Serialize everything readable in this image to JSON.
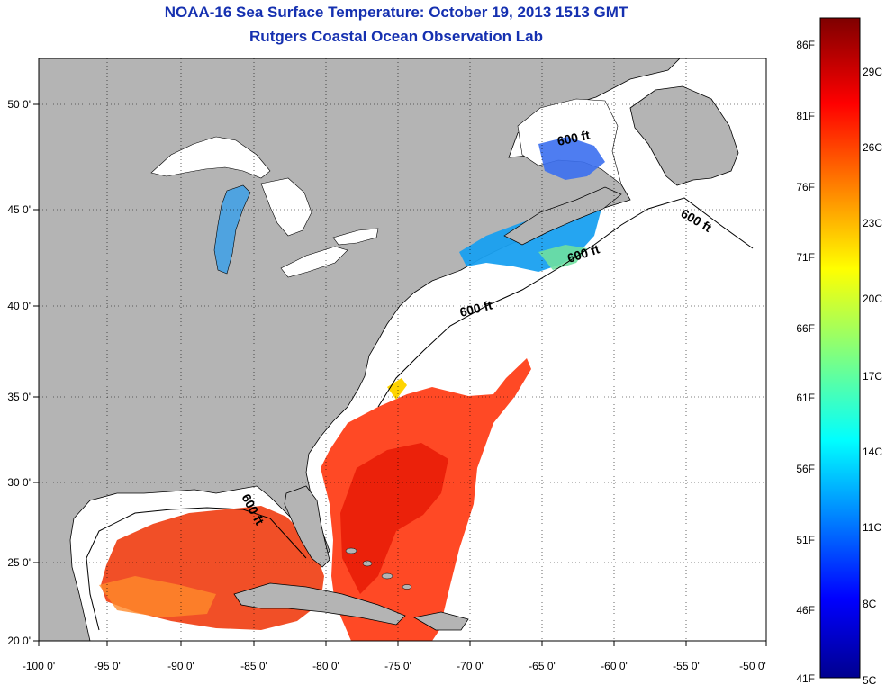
{
  "title": {
    "line1": "NOAA-16 Sea Surface Temperature:  October 19, 2013 1513 GMT",
    "line2": "Rutgers Coastal Ocean Observation Lab"
  },
  "map": {
    "lon_range": [
      -100,
      -50
    ],
    "lat_range": [
      20,
      52
    ],
    "lon_ticks": [
      "-100 0'",
      "-95 0'",
      "-90 0'",
      "-85 0'",
      "-80 0'",
      "-75 0'",
      "-70 0'",
      "-65 0'",
      "-60 0'",
      "-55 0'",
      "-50 0'"
    ],
    "lat_ticks": [
      "20 0'",
      "25 0'",
      "30 0'",
      "35 0'",
      "40 0'",
      "45 0'",
      "50 0'"
    ],
    "lat_tick_values": [
      20,
      25,
      30,
      35,
      40,
      45,
      50
    ],
    "lon_tick_values": [
      -100,
      -95,
      -90,
      -85,
      -80,
      -75,
      -70,
      -65,
      -60,
      -55,
      -50
    ],
    "land_color": "#b4b4b4",
    "contour_labels": [
      "600 ft",
      "600 ft",
      "600 ft",
      "600 ft",
      "600 ft"
    ]
  },
  "colorbar": {
    "fahrenheit_labels": [
      "86F",
      "81F",
      "76F",
      "71F",
      "66F",
      "61F",
      "56F",
      "51F",
      "46F",
      "41F"
    ],
    "celsius_labels": [
      "29C",
      "26C",
      "23C",
      "20C",
      "17C",
      "14C",
      "11C",
      "8C",
      "5C"
    ]
  }
}
